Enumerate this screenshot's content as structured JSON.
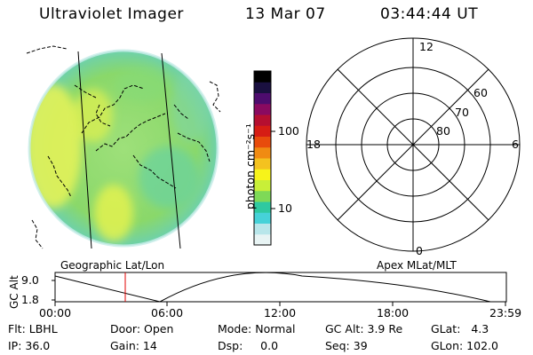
{
  "header": {
    "instrument": "Ultraviolet Imager",
    "date": "13 Mar 07",
    "time": "03:44:44 UT"
  },
  "colorbar": {
    "unit_label": "photon cm⁻²s⁻¹",
    "tick_labels": [
      "100",
      "10"
    ],
    "colors": [
      "#e8f4f4",
      "#b8e6ea",
      "#46d2d8",
      "#2fc9a0",
      "#7ed957",
      "#c8ef38",
      "#f7f31a",
      "#f4c21f",
      "#f08b12",
      "#e84c0c",
      "#d61d14",
      "#b50f30",
      "#8a0a60",
      "#4e0c6e",
      "#1a1040",
      "#000000"
    ]
  },
  "polar_plot": {
    "clock_labels": [
      "12",
      "18",
      "6",
      "0"
    ],
    "lat_labels": [
      "60",
      "70",
      "80"
    ]
  },
  "orbit_plot": {
    "left_title": "Geographic Lat/Lon",
    "right_title": "Apex MLat/MLT",
    "axis_label": "GC Alt",
    "y_ticks": [
      "9.0",
      "1.8"
    ],
    "x_ticks": [
      "00:00",
      "06:00",
      "12:00",
      "18:00",
      "23:59"
    ],
    "current_marker_color": "#e00000"
  },
  "status": {
    "flt": "Flt: LBHL",
    "door": "Door: Open",
    "mode": "Mode: Normal",
    "gc_alt": "GC Alt: 3.9 Re",
    "glat": "GLat:   4.3",
    "ip": "IP: 36.0",
    "gain": "Gain: 14",
    "dsp": "Dsp:     0.0",
    "seq": "Seq: 39",
    "glon": "GLon: 102.0"
  }
}
